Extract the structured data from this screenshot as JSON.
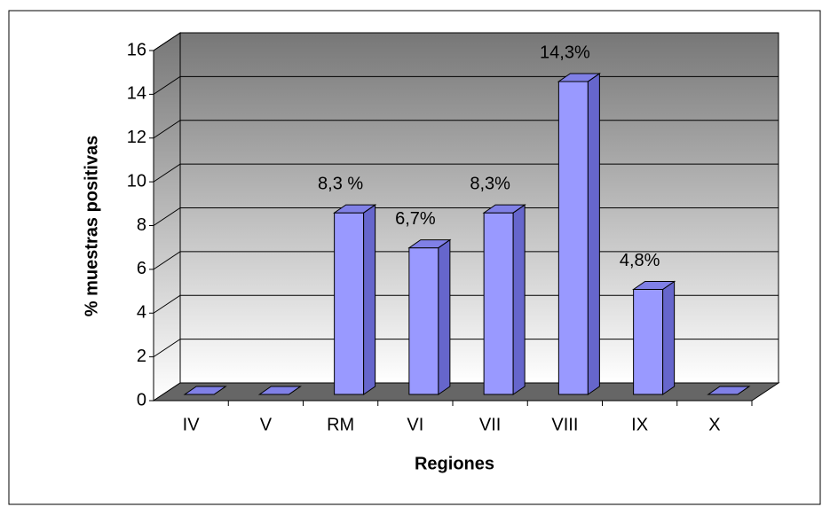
{
  "chart_data": {
    "type": "bar",
    "categories": [
      "IV",
      "V",
      "RM",
      "VI",
      "VII",
      "VIII",
      "IX",
      "X"
    ],
    "values": [
      0,
      0,
      8.3,
      6.7,
      8.3,
      14.3,
      4.8,
      0
    ],
    "value_labels": [
      null,
      null,
      "8,3 %",
      "6,7%",
      "8,3%",
      "14,3%",
      "4,8%",
      null
    ],
    "color": "#9999ff",
    "x_label": "Regiones",
    "y_label": "% muestras positivas",
    "ylim": [
      0,
      16
    ],
    "yticks": [
      0,
      2,
      4,
      6,
      8,
      10,
      12,
      14,
      16
    ],
    "grid": true
  }
}
